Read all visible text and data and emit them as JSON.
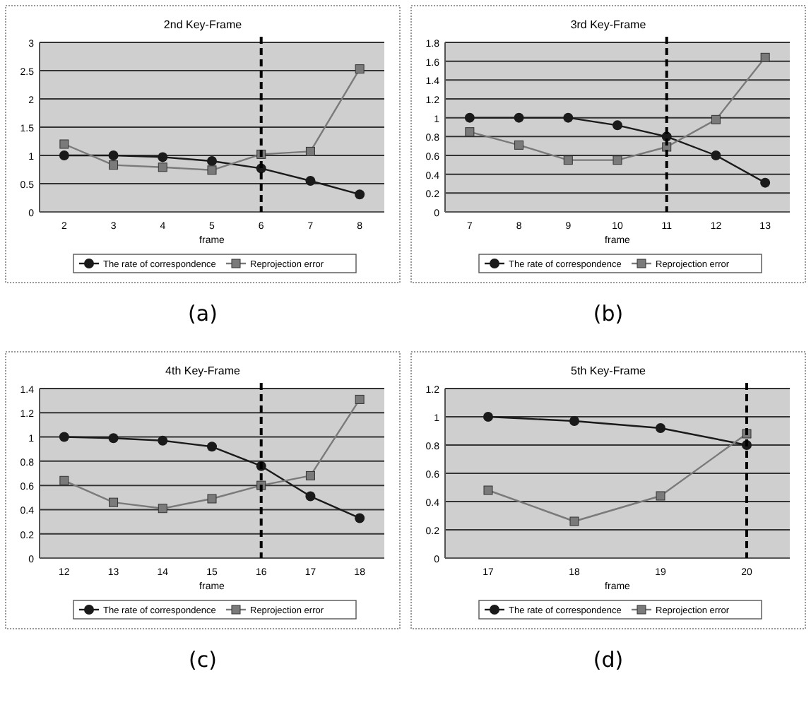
{
  "chart_data": [
    {
      "type": "line",
      "title": "2nd Key-Frame",
      "xlabel": "frame",
      "x": [
        2,
        3,
        4,
        5,
        6,
        7,
        8
      ],
      "xlim": [
        1.5,
        8.5
      ],
      "xticks": [
        2,
        3,
        4,
        5,
        6,
        7,
        8
      ],
      "ylim": [
        0,
        3
      ],
      "yticks": [
        0,
        0.5,
        1,
        1.5,
        2,
        2.5,
        3
      ],
      "grid": "y",
      "legend": "bottom",
      "series": [
        {
          "name": "The rate of correspondence",
          "color": "#1a1a1a",
          "marker": "circle",
          "values": [
            1.0,
            1.0,
            0.97,
            0.9,
            0.77,
            0.55,
            0.31
          ]
        },
        {
          "name": "Reprojection error",
          "color": "#7a7a7a",
          "marker": "square",
          "values": [
            1.2,
            0.83,
            0.79,
            0.74,
            1.02,
            1.07,
            2.53
          ]
        }
      ],
      "ref_lines": [
        {
          "axis": "x",
          "value": 6,
          "line_style": "dashed",
          "color": "#000000"
        }
      ],
      "annotations": [
        "(a)"
      ]
    },
    {
      "type": "line",
      "title": "3rd Key-Frame",
      "xlabel": "frame",
      "x": [
        7,
        8,
        9,
        10,
        11,
        12,
        13
      ],
      "xlim": [
        6.5,
        13.5
      ],
      "xticks": [
        7,
        8,
        9,
        10,
        11,
        12,
        13
      ],
      "ylim": [
        0,
        1.8
      ],
      "yticks": [
        0,
        0.2,
        0.4,
        0.6,
        0.8,
        1,
        1.2,
        1.4,
        1.6,
        1.8
      ],
      "grid": "y",
      "legend": "bottom",
      "series": [
        {
          "name": "The rate of correspondence",
          "color": "#1a1a1a",
          "marker": "circle",
          "values": [
            1.0,
            1.0,
            1.0,
            0.92,
            0.8,
            0.6,
            0.31
          ]
        },
        {
          "name": "Reprojection error",
          "color": "#7a7a7a",
          "marker": "square",
          "values": [
            0.85,
            0.71,
            0.55,
            0.55,
            0.69,
            0.98,
            1.64
          ]
        }
      ],
      "ref_lines": [
        {
          "axis": "x",
          "value": 11,
          "line_style": "dashed",
          "color": "#000000"
        }
      ],
      "annotations": [
        "(b)"
      ]
    },
    {
      "type": "line",
      "title": "4th Key-Frame",
      "xlabel": "frame",
      "x": [
        12,
        13,
        14,
        15,
        16,
        17,
        18
      ],
      "xlim": [
        11.5,
        18.5
      ],
      "xticks": [
        12,
        13,
        14,
        15,
        16,
        17,
        18
      ],
      "ylim": [
        0,
        1.4
      ],
      "yticks": [
        0,
        0.2,
        0.4,
        0.6,
        0.8,
        1,
        1.2,
        1.4
      ],
      "grid": "y",
      "legend": "bottom",
      "series": [
        {
          "name": "The rate of correspondence",
          "color": "#1a1a1a",
          "marker": "circle",
          "values": [
            1.0,
            0.99,
            0.97,
            0.92,
            0.76,
            0.51,
            0.33
          ]
        },
        {
          "name": "Reprojection error",
          "color": "#7a7a7a",
          "marker": "square",
          "values": [
            0.64,
            0.46,
            0.41,
            0.49,
            0.6,
            0.68,
            1.31
          ]
        }
      ],
      "ref_lines": [
        {
          "axis": "x",
          "value": 16,
          "line_style": "dashed",
          "color": "#000000"
        }
      ],
      "annotations": [
        "(c)"
      ]
    },
    {
      "type": "line",
      "title": "5th Key-Frame",
      "xlabel": "frame",
      "x": [
        17,
        18,
        19,
        20
      ],
      "xlim": [
        16.5,
        20.5
      ],
      "xticks": [
        17,
        18,
        19,
        20
      ],
      "ylim": [
        0,
        1.2
      ],
      "yticks": [
        0,
        0.2,
        0.4,
        0.6,
        0.8,
        1,
        1.2
      ],
      "grid": "y",
      "legend": "bottom",
      "series": [
        {
          "name": "The rate of correspondence",
          "color": "#1a1a1a",
          "marker": "circle",
          "values": [
            1.0,
            0.97,
            0.92,
            0.8
          ]
        },
        {
          "name": "Reprojection error",
          "color": "#7a7a7a",
          "marker": "square",
          "values": [
            0.48,
            0.26,
            0.44,
            0.88
          ]
        }
      ],
      "ref_lines": [
        {
          "axis": "x",
          "value": 20,
          "line_style": "dashed",
          "color": "#000000"
        }
      ],
      "annotations": [
        "(d)"
      ]
    }
  ]
}
